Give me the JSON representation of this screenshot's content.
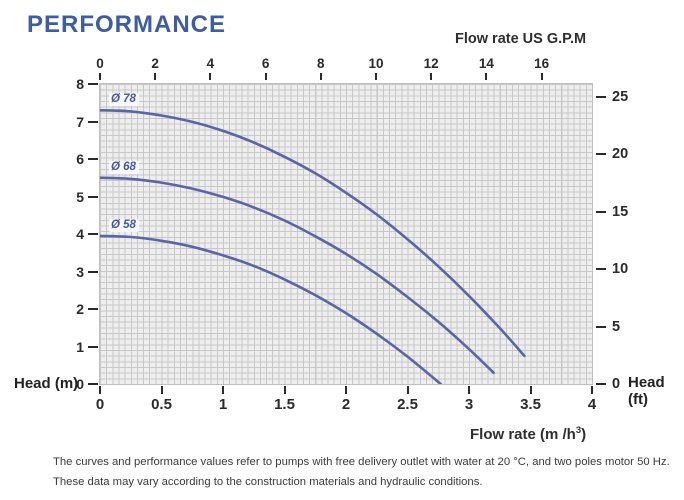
{
  "title": "PERFORMANCE",
  "colors": {
    "title_blue": "#3c5caa",
    "curve_blue": "#5a64a9",
    "curve_label_blue": "#4456a4",
    "tick_text": "#2a2a2a",
    "grid_bg": "#eeeeee",
    "grid_line": "#c8c8c8"
  },
  "top_axis": {
    "label": "Flow rate US  G.P.M",
    "ticks": [
      0,
      2,
      4,
      6,
      8,
      10,
      12,
      14,
      16
    ]
  },
  "bottom_axis": {
    "label_prefix": "Flow rate  (m /h",
    "label_sup": "3",
    "label_suffix": ")",
    "ticks": [
      0,
      0.5,
      1,
      1.5,
      2,
      2.5,
      3,
      3.5,
      4
    ]
  },
  "left_axis": {
    "label": "Head (m)",
    "ticks": [
      8,
      7,
      6,
      5,
      4,
      3,
      2,
      1,
      0
    ]
  },
  "right_axis": {
    "label": "Head (ft)",
    "ticks": [
      25,
      20,
      15,
      10,
      5,
      0
    ]
  },
  "footer": {
    "line1": "The curves and performance values refer to pumps with free delivery outlet with water at 20 °C, and two poles motor 50 Hz.",
    "line2": "These data may vary according to the construction materials and hydraulic conditions."
  },
  "chart_data": {
    "type": "line",
    "title": "PERFORMANCE",
    "xlabel": "Flow rate (m3/h)",
    "xlabel_top": "Flow rate US G.P.M",
    "ylabel_left": "Head (m)",
    "ylabel_right": "Head (ft)",
    "x_range_m3h": [
      0,
      4
    ],
    "x_range_usgpm": [
      0,
      16
    ],
    "y_range_m": [
      0,
      8
    ],
    "y_range_ft": [
      0,
      25
    ],
    "grid": true,
    "legend_position": "labels-on-curves",
    "series": [
      {
        "name": "Ø 78",
        "points": [
          [
            0,
            7.3
          ],
          [
            0.25,
            7.27
          ],
          [
            0.5,
            7.16
          ],
          [
            0.75,
            6.99
          ],
          [
            1,
            6.75
          ],
          [
            1.25,
            6.44
          ],
          [
            1.5,
            6.06
          ],
          [
            1.75,
            5.62
          ],
          [
            2,
            5.1
          ],
          [
            2.25,
            4.52
          ],
          [
            2.5,
            3.86
          ],
          [
            2.75,
            3.14
          ],
          [
            3,
            2.35
          ],
          [
            3.25,
            1.49
          ],
          [
            3.45,
            0.75
          ]
        ]
      },
      {
        "name": "Ø 68",
        "points": [
          [
            0,
            5.5
          ],
          [
            0.25,
            5.47
          ],
          [
            0.5,
            5.37
          ],
          [
            0.75,
            5.21
          ],
          [
            1,
            4.99
          ],
          [
            1.25,
            4.71
          ],
          [
            1.5,
            4.36
          ],
          [
            1.75,
            3.94
          ],
          [
            2,
            3.47
          ],
          [
            2.25,
            2.93
          ],
          [
            2.5,
            2.32
          ],
          [
            2.75,
            1.66
          ],
          [
            3,
            0.93
          ],
          [
            3.2,
            0.3
          ]
        ]
      },
      {
        "name": "Ø 58",
        "points": [
          [
            0,
            3.95
          ],
          [
            0.25,
            3.92
          ],
          [
            0.5,
            3.82
          ],
          [
            0.75,
            3.66
          ],
          [
            1,
            3.43
          ],
          [
            1.25,
            3.15
          ],
          [
            1.5,
            2.79
          ],
          [
            1.75,
            2.37
          ],
          [
            2,
            1.89
          ],
          [
            2.25,
            1.34
          ],
          [
            2.5,
            0.73
          ],
          [
            2.77,
            0
          ]
        ]
      }
    ]
  }
}
